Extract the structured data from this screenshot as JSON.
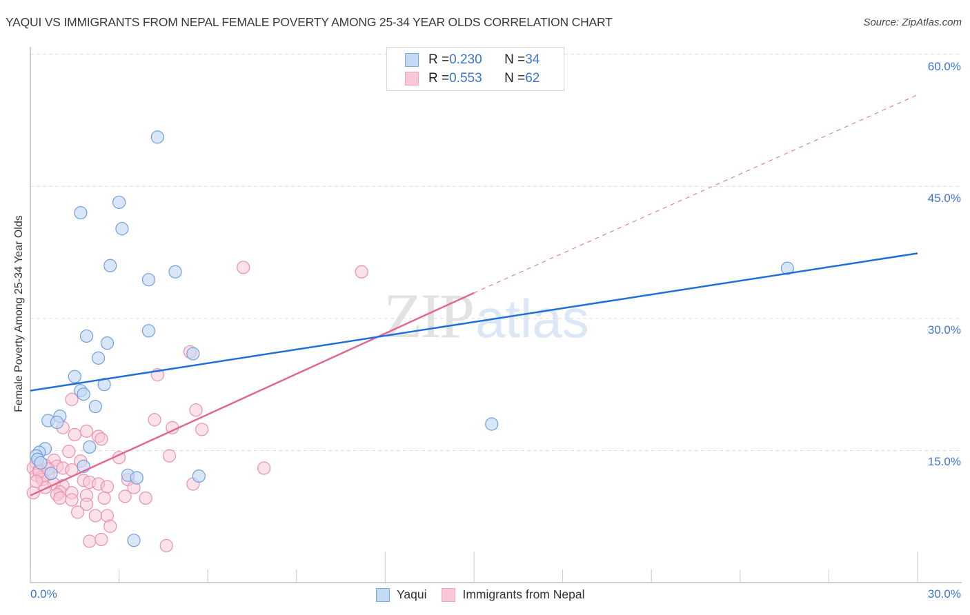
{
  "header": {
    "title": "YAQUI VS IMMIGRANTS FROM NEPAL FEMALE POVERTY AMONG 25-34 YEAR OLDS CORRELATION CHART",
    "source": "Source: ZipAtlas.com"
  },
  "watermark": {
    "zip": "ZIP",
    "atlas": "atlas"
  },
  "axes": {
    "ylabel": "Female Poverty Among 25-34 Year Olds",
    "yticks": [
      "60.0%",
      "45.0%",
      "30.0%",
      "15.0%"
    ],
    "xticks": [
      "0.0%",
      "30.0%"
    ]
  },
  "legend_top": {
    "rows": [
      {
        "r_label": "R = ",
        "r_value": "0.230",
        "n_label": "N = ",
        "n_value": "34",
        "color": "#7aaae8"
      },
      {
        "r_label": "R = ",
        "r_value": "0.553",
        "n_label": "N = ",
        "n_value": "62",
        "color": "#f2a2bb"
      }
    ]
  },
  "legend_bottom": {
    "items": [
      {
        "label": "Yaqui",
        "color": "#7aaae8"
      },
      {
        "label": "Immigrants from Nepal",
        "color": "#f2a2bb"
      }
    ]
  },
  "colors": {
    "yaqui_fill": "#c5d9f5",
    "yaqui_stroke": "#6f9fe0",
    "yaqui_line": "#1f6fd6",
    "nepal_fill": "#f8c8d6",
    "nepal_stroke": "#eb8fae",
    "nepal_line": "#e36690",
    "tick_text": "#3b74cc"
  },
  "chart_data": {
    "type": "scatter",
    "title": "YAQUI VS IMMIGRANTS FROM NEPAL FEMALE POVERTY AMONG 25-34 YEAR OLDS CORRELATION CHART",
    "xlabel": "",
    "ylabel": "Female Poverty Among 25-34 Year Olds",
    "xlim": [
      0,
      30
    ],
    "ylim": [
      0,
      62
    ],
    "x_ticks": [
      "0.0%",
      "30.0%"
    ],
    "y_ticks": [
      "15.0%",
      "30.0%",
      "45.0%",
      "60.0%"
    ],
    "grid": "horizontal dashed",
    "legend_position": "top-center",
    "series": [
      {
        "name": "Yaqui",
        "r": 0.23,
        "n": 34,
        "trend": {
          "x": [
            0,
            30
          ],
          "y": [
            21.8,
            37.4
          ]
        },
        "points": [
          [
            4.3,
            50.6
          ],
          [
            3.0,
            43.2
          ],
          [
            1.7,
            42.0
          ],
          [
            3.1,
            40.2
          ],
          [
            2.7,
            36.0
          ],
          [
            4.0,
            34.4
          ],
          [
            4.9,
            35.3
          ],
          [
            4.0,
            28.6
          ],
          [
            1.9,
            28.0
          ],
          [
            2.6,
            27.2
          ],
          [
            2.3,
            25.5
          ],
          [
            5.5,
            26.0
          ],
          [
            1.5,
            23.4
          ],
          [
            2.5,
            22.5
          ],
          [
            1.7,
            21.8
          ],
          [
            1.8,
            21.4
          ],
          [
            2.2,
            20.0
          ],
          [
            1.0,
            18.9
          ],
          [
            0.6,
            18.4
          ],
          [
            0.9,
            18.2
          ],
          [
            2.0,
            15.4
          ],
          [
            0.5,
            15.2
          ],
          [
            0.3,
            14.8
          ],
          [
            0.2,
            14.4
          ],
          [
            0.25,
            14.0
          ],
          [
            0.35,
            13.6
          ],
          [
            1.8,
            13.2
          ],
          [
            0.7,
            12.4
          ],
          [
            3.3,
            12.2
          ],
          [
            3.6,
            11.9
          ],
          [
            5.7,
            12.1
          ],
          [
            3.5,
            4.8
          ],
          [
            15.6,
            18.0
          ],
          [
            25.6,
            35.7
          ]
        ]
      },
      {
        "name": "Immigrants from Nepal",
        "r": 0.553,
        "n": 62,
        "trend": {
          "x": [
            0,
            15.0
          ],
          "y": [
            9.9,
            32.9
          ],
          "dashed_extension": {
            "x": [
              15.0,
              30
            ],
            "y": [
              32.9,
              55.4
            ]
          }
        },
        "points": [
          [
            7.2,
            35.8
          ],
          [
            11.2,
            35.3
          ],
          [
            5.4,
            26.2
          ],
          [
            4.3,
            23.6
          ],
          [
            1.4,
            20.8
          ],
          [
            5.6,
            19.6
          ],
          [
            4.2,
            18.5
          ],
          [
            4.8,
            17.6
          ],
          [
            5.8,
            17.4
          ],
          [
            1.1,
            17.6
          ],
          [
            1.9,
            17.2
          ],
          [
            1.5,
            16.8
          ],
          [
            2.3,
            16.6
          ],
          [
            2.4,
            16.3
          ],
          [
            1.3,
            14.9
          ],
          [
            3.0,
            14.2
          ],
          [
            4.7,
            14.4
          ],
          [
            0.8,
            13.9
          ],
          [
            1.7,
            13.8
          ],
          [
            0.2,
            13.6
          ],
          [
            0.5,
            13.3
          ],
          [
            0.9,
            13.2
          ],
          [
            1.1,
            13.0
          ],
          [
            0.1,
            13.0
          ],
          [
            0.3,
            12.8
          ],
          [
            1.4,
            12.8
          ],
          [
            7.9,
            13.0
          ],
          [
            0.6,
            12.3
          ],
          [
            0.2,
            12.2
          ],
          [
            0.4,
            12.0
          ],
          [
            1.8,
            11.6
          ],
          [
            2.0,
            11.4
          ],
          [
            3.3,
            11.7
          ],
          [
            0.4,
            11.7
          ],
          [
            0.8,
            11.2
          ],
          [
            2.3,
            11.2
          ],
          [
            2.6,
            10.9
          ],
          [
            3.5,
            10.8
          ],
          [
            5.5,
            11.2
          ],
          [
            1.1,
            11.0
          ],
          [
            0.5,
            10.8
          ],
          [
            1.0,
            10.3
          ],
          [
            1.4,
            10.2
          ],
          [
            0.9,
            10.0
          ],
          [
            0.1,
            10.2
          ],
          [
            1.9,
            9.9
          ],
          [
            2.5,
            9.6
          ],
          [
            3.2,
            9.8
          ],
          [
            3.9,
            9.6
          ],
          [
            1.0,
            9.6
          ],
          [
            1.4,
            9.4
          ],
          [
            1.9,
            8.9
          ],
          [
            1.6,
            8.0
          ],
          [
            2.2,
            7.6
          ],
          [
            2.6,
            7.6
          ],
          [
            2.7,
            6.4
          ],
          [
            2.0,
            4.7
          ],
          [
            2.4,
            4.9
          ],
          [
            4.6,
            4.2
          ],
          [
            0.3,
            12.6
          ],
          [
            0.6,
            12.9
          ],
          [
            0.2,
            11.5
          ]
        ]
      }
    ]
  }
}
